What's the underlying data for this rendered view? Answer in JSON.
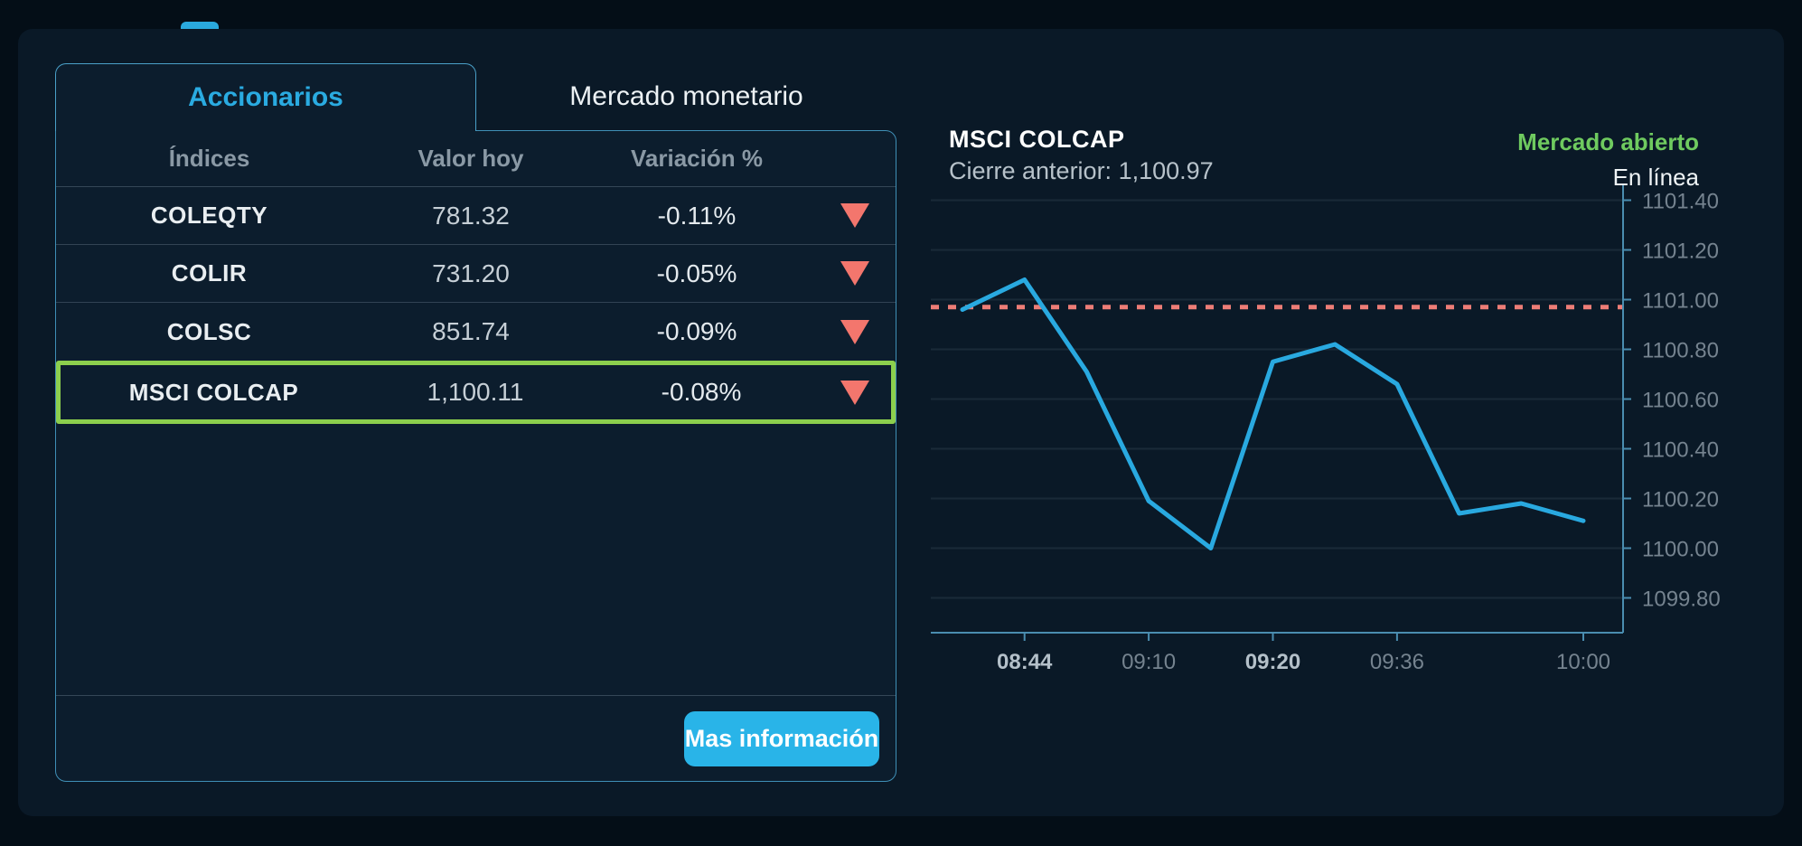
{
  "tabs": {
    "accionarios": "Accionarios",
    "mercado_monetario": "Mercado monetario"
  },
  "table": {
    "headers": {
      "indices": "Índices",
      "valor_hoy": "Valor hoy",
      "variacion": "Variación %"
    },
    "rows": [
      {
        "name": "COLEQTY",
        "value": "781.32",
        "variation": "-0.11%",
        "direction": "down",
        "highlighted": false
      },
      {
        "name": "COLIR",
        "value": "731.20",
        "variation": "-0.05%",
        "direction": "down",
        "highlighted": false
      },
      {
        "name": "COLSC",
        "value": "851.74",
        "variation": "-0.09%",
        "direction": "down",
        "highlighted": false
      },
      {
        "name": "MSCI COLCAP",
        "value": "1,100.11",
        "variation": "-0.08%",
        "direction": "down",
        "highlighted": true
      }
    ]
  },
  "button": {
    "label": "Mas información"
  },
  "chart_header": {
    "title": "MSCI COLCAP",
    "previous_close_label": "Cierre anterior: 1,100.97",
    "market_status": "Mercado abierto",
    "online_status": "En línea"
  },
  "colors": {
    "accent_cyan": "#29b4e8",
    "active_tab_cyan": "#2aabe1",
    "highlight_green": "#8ccf4d",
    "status_green": "#6fca5f",
    "negative_red": "#f3766d"
  },
  "chart_data": {
    "type": "line",
    "title": "MSCI COLCAP intraday",
    "x_labels": [
      "",
      "08:44",
      "",
      "09:10",
      "",
      "09:20",
      "",
      "09:36",
      "",
      "",
      "10:00"
    ],
    "x_label_emphasis": [
      "08:44",
      "09:20"
    ],
    "values": [
      1100.96,
      1101.08,
      1100.71,
      1100.19,
      1100.0,
      1100.75,
      1100.82,
      1100.66,
      1100.14,
      1100.18,
      1100.11
    ],
    "y_ticks": [
      1101.4,
      1101.2,
      1101.0,
      1100.8,
      1100.6,
      1100.4,
      1100.2,
      1100.0,
      1099.8
    ],
    "ylim": [
      1099.66,
      1101.46
    ],
    "reference_line": 1100.97,
    "grid": "on",
    "legend": "none",
    "line_color": "#29a9e0",
    "reference_color": "#ed7d77",
    "axis_color": "#4a8db0",
    "label_color": "#75838f",
    "label_emphasis_color": "#b4c0c9"
  }
}
